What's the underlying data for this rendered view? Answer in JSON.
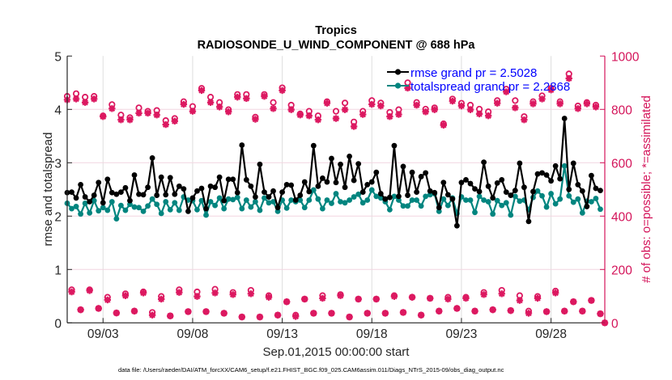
{
  "chart_data": {
    "type": "line",
    "title": "Tropics",
    "subtitle": "RADIOSONDE_U_WIND_COMPONENT @ 688 hPa",
    "xlabel": "Sep.01,2015 00:00:00 start",
    "ylabel": "rmse and totalspread",
    "ylabel_right": "# of obs: o=possible; *=assimilated",
    "x_start": "2015-09-01 00:00",
    "time_step_hours": 6,
    "x_tick_labels": [
      "09/03",
      "09/08",
      "09/13",
      "09/18",
      "09/23",
      "09/28"
    ],
    "y_ticks": [
      "0",
      "1",
      "2",
      "3",
      "4",
      "5"
    ],
    "y_right_ticks": [
      "0",
      "200",
      "400",
      "600",
      "800",
      "1000"
    ],
    "ylim": [
      0,
      5
    ],
    "ylim_right": [
      0,
      1000
    ],
    "grid": true,
    "legend_position": "top-right",
    "footer": "data file: /Users/raeder/DAI/ATM_forcXX/CAM6_setup/f.e21.FHIST_BGC.f09_025.CAM6assim.011/Diags_NTrS_2015-09/obs_diag_output.nc",
    "colors": {
      "rmse": "#000000",
      "totalspread": "#00857f",
      "obs": "#dc1860",
      "right_axis": "#d4145a",
      "legend_text": "#0000ff"
    },
    "series": [
      {
        "name": "rmse grand pr = 2.5028",
        "axis": "left",
        "values": [
          2.44,
          2.45,
          2.34,
          2.59,
          2.36,
          2.27,
          2.39,
          2.63,
          2.25,
          2.69,
          2.44,
          2.41,
          2.45,
          2.53,
          2.29,
          2.77,
          2.41,
          2.4,
          2.54,
          3.09,
          2.39,
          2.73,
          2.4,
          2.72,
          2.41,
          2.56,
          2.51,
          2.09,
          2.34,
          2.47,
          2.52,
          2.14,
          2.56,
          2.54,
          2.73,
          2.29,
          2.69,
          2.69,
          2.44,
          3.33,
          2.68,
          2.56,
          2.36,
          2.97,
          2.45,
          2.36,
          2.47,
          2.16,
          2.45,
          2.59,
          2.58,
          2.3,
          2.39,
          2.64,
          2.46,
          3.32,
          2.56,
          2.71,
          2.64,
          3.08,
          2.63,
          2.97,
          2.54,
          3.12,
          2.67,
          2.98,
          2.45,
          2.59,
          2.64,
          2.82,
          2.42,
          2.32,
          2.35,
          3.32,
          2.37,
          2.93,
          2.39,
          2.82,
          2.45,
          2.74,
          2.81,
          2.47,
          2.44,
          2.16,
          2.63,
          2.4,
          2.32,
          1.82,
          2.63,
          2.68,
          2.61,
          2.51,
          2.46,
          3.01,
          2.56,
          2.34,
          2.62,
          2.68,
          2.45,
          2.39,
          2.48,
          2.99,
          2.54,
          1.9,
          2.46,
          2.79,
          2.81,
          2.77,
          2.66,
          2.94,
          2.7,
          3.83,
          2.5,
          2.99,
          2.59,
          2.47,
          2.18,
          2.76,
          2.52,
          2.48
        ]
      },
      {
        "name": "totalspread grand pr = 2.2868",
        "axis": "left",
        "values": [
          2.24,
          2.14,
          2.18,
          2.04,
          2.24,
          2.06,
          2.29,
          2.1,
          2.16,
          2.11,
          2.27,
          1.95,
          2.2,
          2.11,
          2.22,
          2.17,
          2.16,
          2.09,
          2.19,
          2.32,
          2.22,
          2.05,
          2.27,
          2.12,
          2.25,
          2.11,
          2.36,
          2.3,
          2.29,
          2.12,
          2.29,
          2.02,
          2.27,
          2.2,
          2.34,
          2.14,
          2.32,
          2.31,
          2.35,
          2.14,
          2.3,
          2.17,
          2.27,
          2.11,
          2.34,
          2.25,
          2.27,
          2.09,
          2.3,
          2.15,
          2.3,
          2.27,
          2.3,
          2.16,
          2.3,
          2.49,
          2.32,
          2.14,
          2.3,
          2.24,
          2.42,
          2.27,
          2.25,
          2.3,
          2.36,
          2.41,
          2.25,
          2.3,
          2.49,
          2.37,
          2.34,
          2.27,
          2.12,
          2.37,
          2.3,
          2.19,
          2.19,
          2.3,
          2.3,
          2.19,
          2.37,
          2.4,
          2.42,
          2.09,
          2.32,
          2.2,
          2.34,
          2.05,
          2.36,
          2.3,
          2.3,
          2.07,
          2.37,
          2.3,
          2.27,
          2.04,
          2.29,
          2.2,
          2.25,
          2.02,
          2.37,
          2.28,
          2.3,
          2.12,
          2.35,
          2.47,
          2.38,
          2.17,
          2.42,
          2.23,
          2.32,
          2.94,
          2.38,
          2.26,
          2.32,
          2.06,
          2.28,
          2.27,
          2.33,
          2.13
        ]
      },
      {
        "axis": "right",
        "marker": "o",
        "values": [
          849,
          124,
          859,
          49,
          846,
          124,
          849,
          54,
          776,
          96,
          818,
          37,
          779,
          109,
          769,
          44,
          806,
          116,
          793,
          39,
          796,
          99,
          758,
          26,
          766,
          124,
          829,
          42,
          811,
          116,
          879,
          42,
          846,
          126,
          826,
          36,
          799,
          114,
          856,
          22,
          856,
          122,
          771,
          22,
          856,
          102,
          826,
          29,
          881,
          79,
          816,
          29,
          783,
          89,
          793,
          36,
          776,
          102,
          829,
          36,
          793,
          106,
          824,
          22,
          753,
          89,
          793,
          36,
          833,
          89,
          824,
          36,
          789,
          102,
          799,
          39,
          900,
          96,
          826,
          29,
          801,
          92,
          806,
          44,
          746,
          96,
          839,
          54,
          823,
          96,
          816,
          44,
          801,
          114,
          791,
          49,
          833,
          122,
          876,
          46,
          833,
          102,
          773,
          44,
          829,
          99,
          851,
          42,
          879,
          119,
          829,
          44,
          933,
          79,
          813,
          44,
          826,
          84,
          816,
          34,
          0
        ]
      },
      {
        "axis": "right",
        "marker": "*",
        "values": [
          836,
          116,
          839,
          49,
          826,
          121,
          839,
          54,
          773,
          86,
          803,
          37,
          761,
          102,
          761,
          44,
          786,
          112,
          786,
          29,
          779,
          89,
          743,
          26,
          756,
          114,
          819,
          42,
          793,
          99,
          871,
          42,
          826,
          112,
          809,
          36,
          791,
          106,
          846,
          22,
          841,
          109,
          763,
          22,
          849,
          96,
          803,
          29,
          871,
          79,
          799,
          24,
          779,
          89,
          776,
          36,
          761,
          92,
          823,
          36,
          766,
          102,
          799,
          22,
          736,
          89,
          781,
          36,
          819,
          89,
          813,
          36,
          773,
          99,
          781,
          39,
          880,
          96,
          816,
          29,
          791,
          92,
          799,
          44,
          741,
          89,
          831,
          54,
          813,
          92,
          799,
          44,
          783,
          106,
          776,
          49,
          823,
          109,
          866,
          46,
          806,
          84,
          761,
          36,
          821,
          92,
          839,
          42,
          873,
          112,
          821,
          44,
          916,
          79,
          803,
          44,
          821,
          84,
          809,
          34,
          0
        ]
      }
    ]
  }
}
